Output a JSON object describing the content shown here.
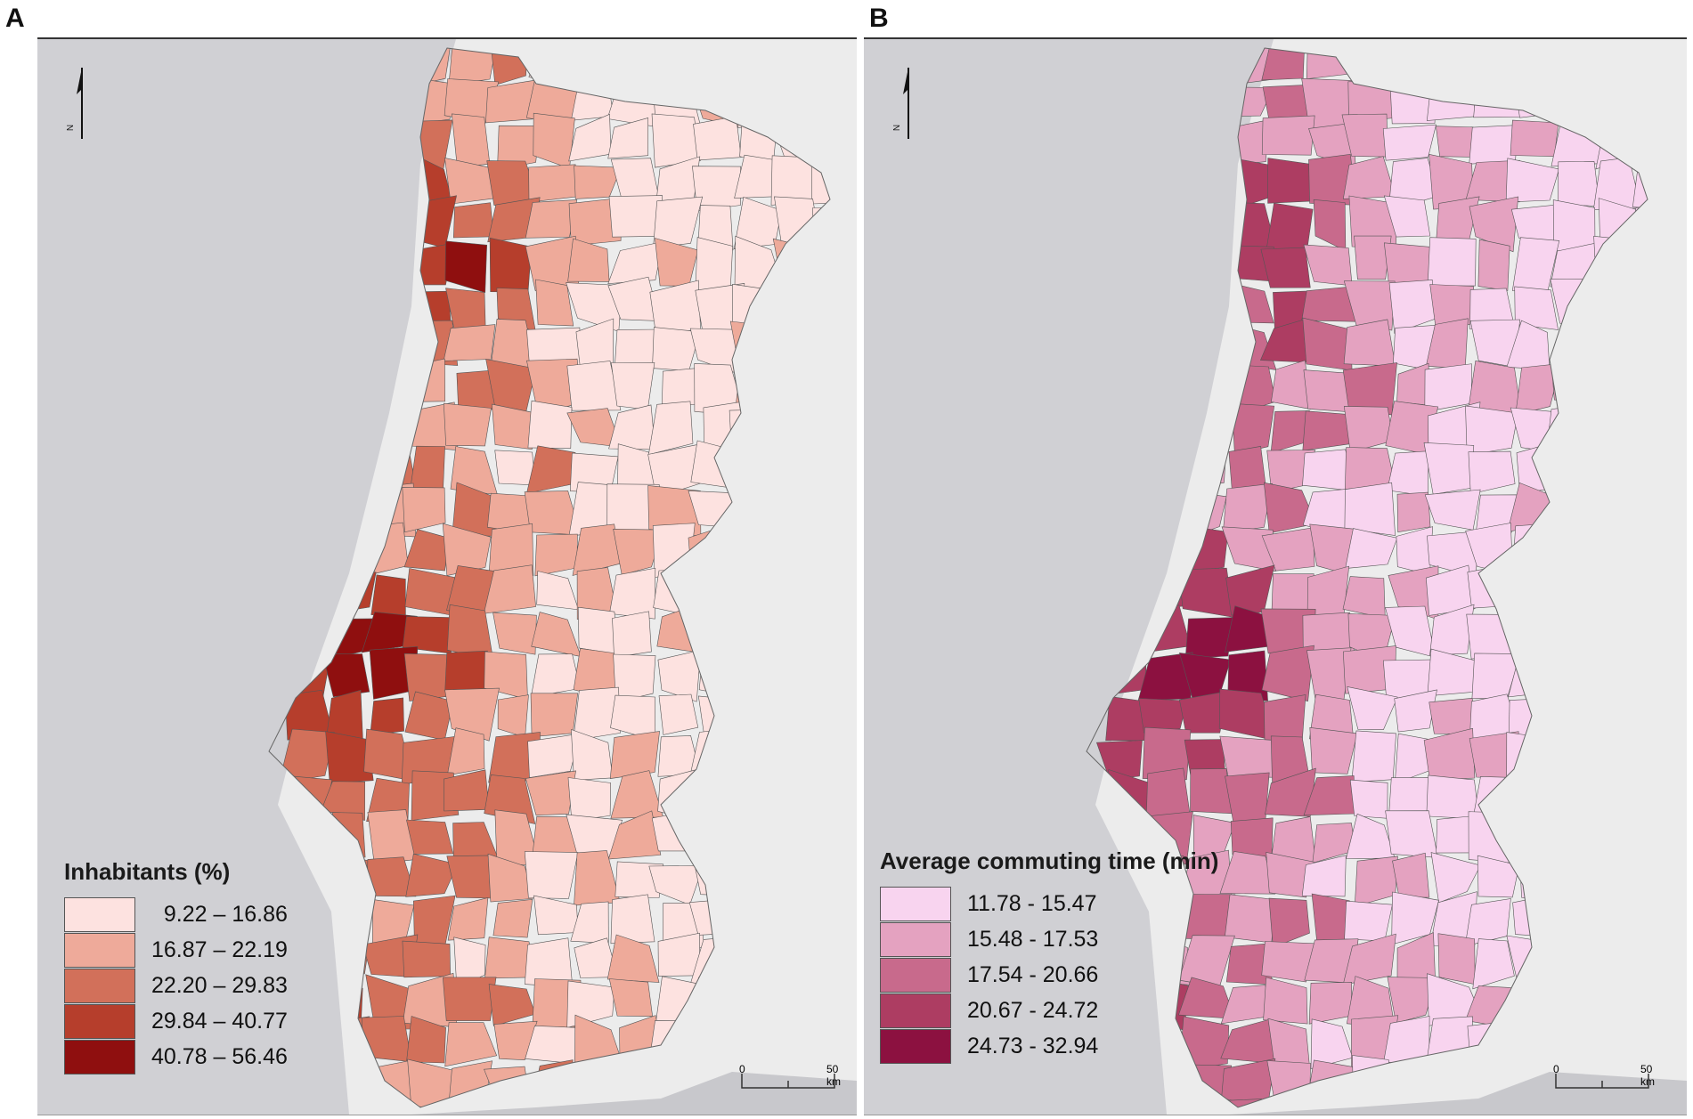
{
  "panels": [
    {
      "letter": "A",
      "legend_title": "Inhabitants (%)",
      "classes": [
        {
          "label": "  9.22 – 16.86",
          "color": "#fde2e0"
        },
        {
          "label": "16.87 – 22.19",
          "color": "#eeaa9a"
        },
        {
          "label": "22.20 – 29.83",
          "color": "#d2705a"
        },
        {
          "label": "29.84 – 40.77",
          "color": "#b63e2c"
        },
        {
          "label": "40.78 – 56.46",
          "color": "#8f0f0f"
        }
      ],
      "north_label": "N",
      "scale": {
        "start": "0",
        "end": "50 km"
      }
    },
    {
      "letter": "B",
      "legend_title": "Average commuting time (min)",
      "classes": [
        {
          "label": "11.78 - 15.47",
          "color": "#f8d4ef"
        },
        {
          "label": "15.48 - 17.53",
          "color": "#e4a2c0"
        },
        {
          "label": "17.54 - 20.66",
          "color": "#c86a8c"
        },
        {
          "label": "20.67 - 24.72",
          "color": "#ad3d62"
        },
        {
          "label": "24.73 - 32.94",
          "color": "#8c1140"
        }
      ],
      "north_label": "N",
      "scale": {
        "start": "0",
        "end": "50 km"
      }
    }
  ],
  "colors": {
    "ocean": "#d0d0d4",
    "land_background": "#ececec",
    "border": "#555555"
  }
}
